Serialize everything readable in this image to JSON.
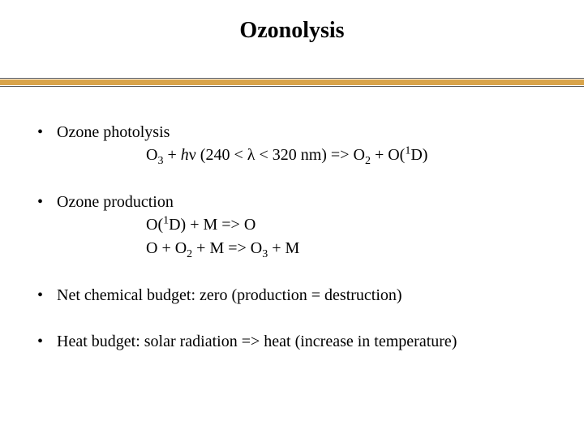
{
  "title": "Ozonolysis",
  "accent_color": "#d9a44a",
  "rule_line_color": "#555555",
  "background_color": "#ffffff",
  "text_color": "#000000",
  "title_fontsize_pt": 21,
  "body_fontsize_pt": 15,
  "bullets": [
    {
      "label": "Ozone photolysis",
      "equations": [
        {
          "plain": "O3  + hν  (240 < λ < 320 nm) =>  O2  +  O(1D)",
          "parts": {
            "o3": "O",
            "o3_sub": "3",
            "plus1": "  + ",
            "h": "h",
            "nu": "ν",
            "range_open": "  (240 < ",
            "lambda": "λ",
            "range_close": " < 320 nm) =>  ",
            "o2": "O",
            "o2_sub": "2",
            "plus2": "  +  O(",
            "one": "1",
            "d": "D)"
          }
        }
      ]
    },
    {
      "label": "Ozone production",
      "equations": [
        {
          "plain": "O(1D)  +  M => O",
          "parts": {
            "o_open": "O(",
            "one": "1",
            "d_close": "D)  +  M => O"
          }
        },
        {
          "plain": "O   +  O2  +  M  =>  O3 +  M",
          "parts": {
            "lead": "O   +  O",
            "o2_sub": "2",
            "mid": "  +  M  =>  O",
            "o3_sub": "3",
            "tail": " +  M"
          }
        }
      ]
    },
    {
      "label": "Net chemical budget: zero (production = destruction)",
      "equations": []
    },
    {
      "label": "Heat budget: solar radiation => heat (increase in temperature)",
      "equations": []
    }
  ]
}
